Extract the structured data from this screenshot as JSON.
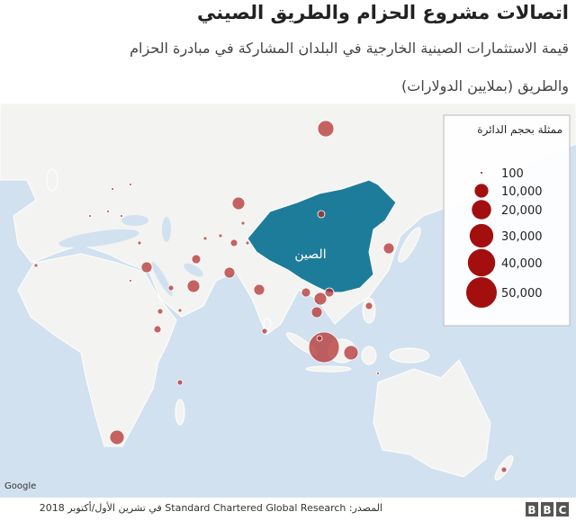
{
  "header": {
    "title": "اتصالات مشروع الحزام والطريق الصيني",
    "subtitle_lines": [
      "قيمة الاستثمارات الصينية الخارجية في البلدان المشاركة في مبادرة الحزام",
      "والطريق (بملايين الدولارات)"
    ]
  },
  "map": {
    "label": "الصين",
    "attribution": "Google",
    "legend": {
      "title": "ممثلة بحجم الدائرة",
      "sizes": [
        100,
        {
          "value": 10000,
          "label": "10,000"
        },
        {
          "value": 20000,
          "label": "20,000"
        },
        {
          "value": 30000,
          "label": "30,000"
        },
        {
          "value": 40000,
          "label": "40,000"
        },
        {
          "value": 50000,
          "label": "50,000"
        }
      ]
    }
  },
  "footer": {
    "source": "المصدر: Standard Chartered Global Research في تشرين الأول/أكتوبر 2018",
    "logo": [
      "B",
      "B",
      "C"
    ]
  }
}
